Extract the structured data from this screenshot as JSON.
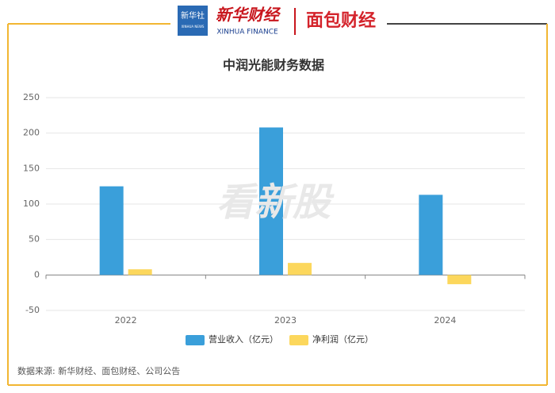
{
  "header": {
    "badge": "新华社",
    "badge_en": "XINHUA NEWS",
    "brand": "新华财经",
    "brand_en": "XINHUA FINANCE",
    "partner": "面包财经"
  },
  "watermark": "看新股",
  "source": "数据来源: 新华财经、面包财经、公司公告",
  "chart_data": {
    "type": "bar",
    "title": "中润光能财务数据",
    "categories": [
      "2022",
      "2023",
      "2024"
    ],
    "series": [
      {
        "name": "营业收入（亿元）",
        "color": "#3a9fda",
        "values": [
          125,
          208,
          113
        ]
      },
      {
        "name": "净利润（亿元）",
        "color": "#fcd75c",
        "values": [
          8,
          17,
          -13
        ]
      }
    ],
    "ylim": [
      -50,
      250
    ],
    "yticks": [
      -50,
      0,
      50,
      100,
      150,
      200,
      250
    ],
    "grid": true,
    "legend": "bottom"
  }
}
